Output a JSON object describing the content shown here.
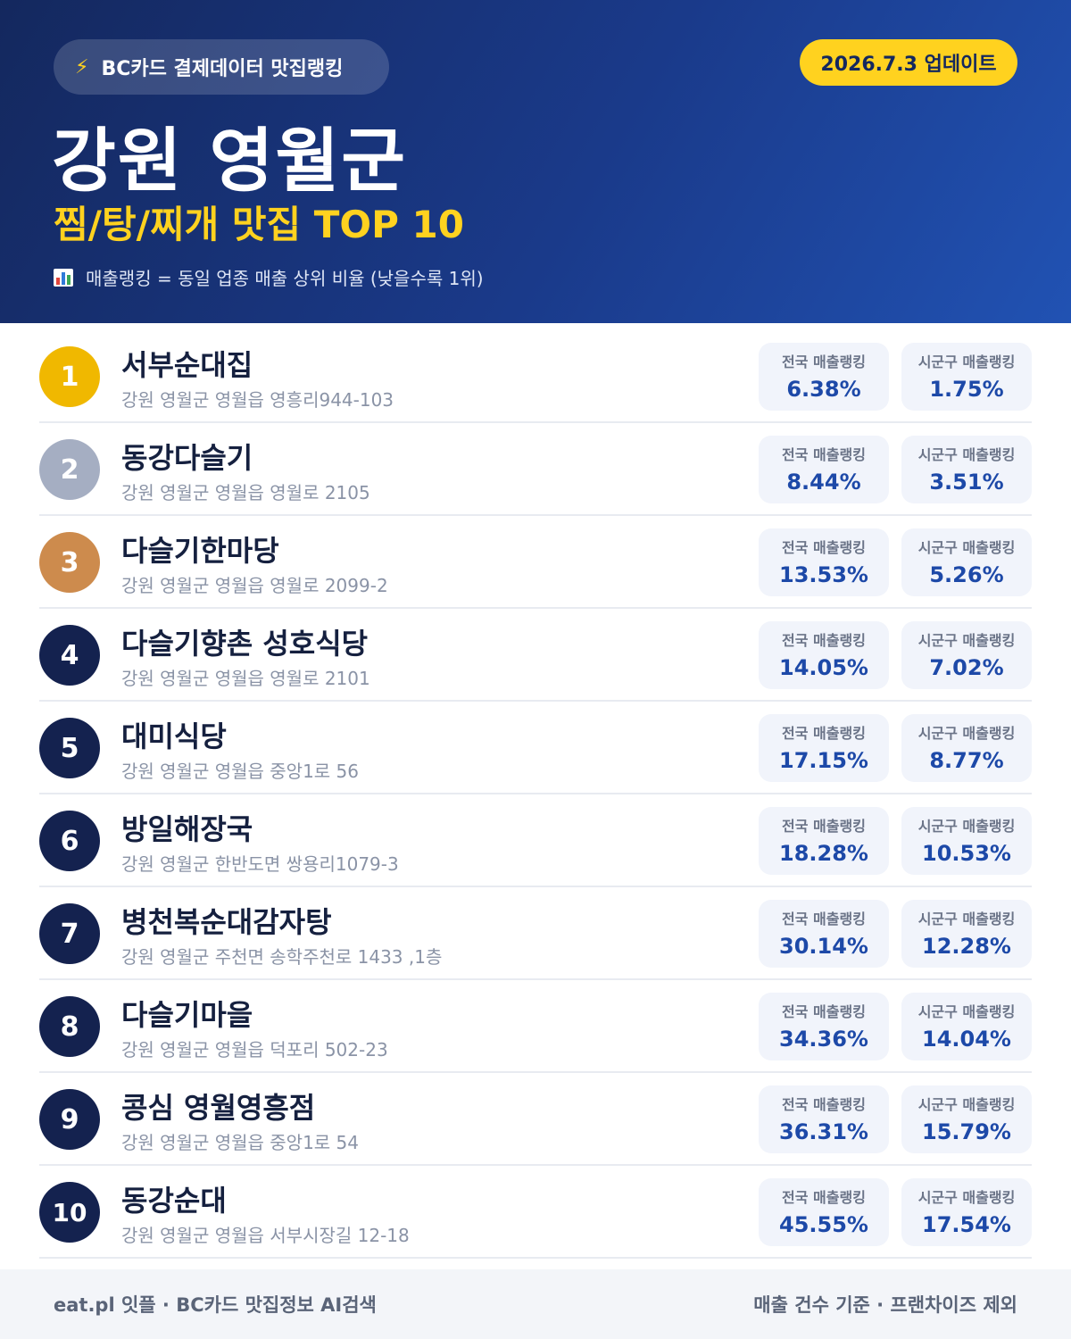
{
  "header": {
    "source_label": "BC카드 결제데이터 맛집랭킹",
    "update_label": "2026.7.3 업데이트",
    "region_title": "강원 영월군",
    "category_title": "찜/탕/찌개 맛집 TOP 10",
    "legend_note": "매출랭킹 = 동일 업종 매출 상위 비율 (낮을수록 1위)",
    "icons": {
      "source": "lightning-icon",
      "legend": "bar-chart-icon"
    },
    "colors": {
      "header_start": "#14285e",
      "header_end": "#2152b3",
      "accent_yellow": "#ffd21f"
    }
  },
  "stat_labels": {
    "national": "전국 매출랭킹",
    "local": "시군구 매출랭킹"
  },
  "restaurants": [
    {
      "rank": "1",
      "name": "서부순대집",
      "address": "강원 영월군 영월읍 영흥리944-103",
      "national": "6.38%",
      "local": "1.75%"
    },
    {
      "rank": "2",
      "name": "동강다슬기",
      "address": "강원 영월군 영월읍 영월로 2105",
      "national": "8.44%",
      "local": "3.51%"
    },
    {
      "rank": "3",
      "name": "다슬기한마당",
      "address": "강원 영월군 영월읍 영월로 2099-2",
      "national": "13.53%",
      "local": "5.26%"
    },
    {
      "rank": "4",
      "name": "다슬기향촌 성호식당",
      "address": "강원 영월군 영월읍 영월로 2101",
      "national": "14.05%",
      "local": "7.02%"
    },
    {
      "rank": "5",
      "name": "대미식당",
      "address": "강원 영월군 영월읍 중앙1로 56",
      "national": "17.15%",
      "local": "8.77%"
    },
    {
      "rank": "6",
      "name": "방일해장국",
      "address": "강원 영월군 한반도면 쌍용리1079-3",
      "national": "18.28%",
      "local": "10.53%"
    },
    {
      "rank": "7",
      "name": "병천복순대감자탕",
      "address": "강원 영월군 주천면 송학주천로 1433 ,1층",
      "national": "30.14%",
      "local": "12.28%"
    },
    {
      "rank": "8",
      "name": "다슬기마을",
      "address": "강원 영월군 영월읍 덕포리 502-23",
      "national": "34.36%",
      "local": "14.04%"
    },
    {
      "rank": "9",
      "name": "콩심 영월영흥점",
      "address": "강원 영월군 영월읍 중앙1로 54",
      "national": "36.31%",
      "local": "15.79%"
    },
    {
      "rank": "10",
      "name": "동강순대",
      "address": "강원 영월군 영월읍 서부시장길 12-18",
      "national": "45.55%",
      "local": "17.54%"
    }
  ],
  "rank_colors": {
    "gold": "#f0b800",
    "silver": "#a5aec2",
    "bronze": "#cd8b4d",
    "navy": "#14224f"
  },
  "footer": {
    "left": "eat.pl 잇플 · BC카드 맛집정보 AI검색",
    "right": "매출 건수 기준 · 프랜차이즈 제외"
  }
}
